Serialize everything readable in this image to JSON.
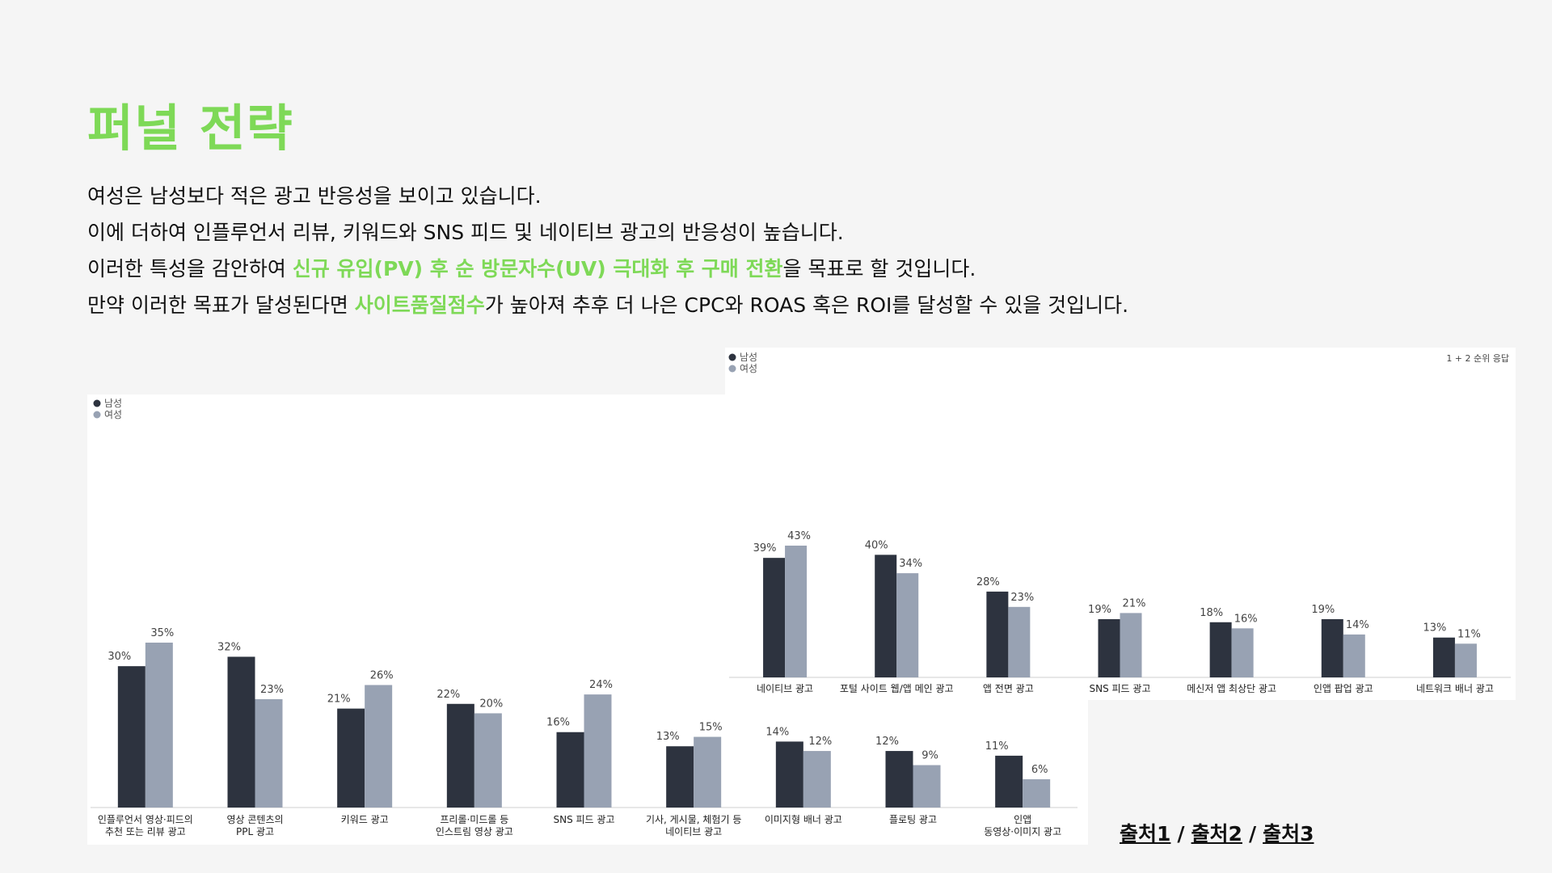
{
  "title": "퍼널 전략",
  "lines": {
    "l1": "여성은 남성보다 적은 광고 반응성을 보이고 있습니다.",
    "l2": "이에 더하여 인플루언서 리뷰, 키워드와 SNS 피드 및 네이티브 광고의 반응성이 높습니다.",
    "l3_a": "이러한 특성을 감안하여 ",
    "l3_hl": "신규 유입(PV) 후 순 방문자수(UV) 극대화 후 구매 전환",
    "l3_b": "을 목표로 할 것입니다.",
    "l4_a": "만약 이러한 목표가 달성된다면 ",
    "l4_hl": "사이트품질점수",
    "l4_b": "가 높아져 추후 더 나은 CPC와 ROAS 혹은 ROI를 달성할 수 있을 것입니다."
  },
  "colors": {
    "accent": "#7ed957",
    "male": "#2d333f",
    "female": "#98a2b3"
  },
  "sources": {
    "s1": "출처1",
    "s2": "출처2",
    "s3": "출처3",
    "sep": "/"
  },
  "chart_data": [
    {
      "type": "bar",
      "legend": [
        "남성",
        "여성"
      ],
      "legend_position": "top-left",
      "categories": [
        [
          "인플루언서 영상·피드의",
          "추천 또는 리뷰 광고"
        ],
        [
          "영상 콘텐츠의",
          "PPL 광고"
        ],
        [
          "키워드 광고"
        ],
        [
          "프리롤·미드롤 등",
          "인스트림 영상 광고"
        ],
        [
          "SNS 피드 광고"
        ],
        [
          "기사, 게시물, 체험기 등",
          "네이티브 광고"
        ],
        [
          "이미지형 배너 광고"
        ],
        [
          "플로팅 광고"
        ],
        [
          "인앱",
          "동영상·이미지 광고"
        ]
      ],
      "series": [
        {
          "name": "남성",
          "values": [
            30,
            32,
            21,
            22,
            16,
            13,
            14,
            12,
            11
          ]
        },
        {
          "name": "여성",
          "values": [
            35,
            23,
            26,
            20,
            24,
            15,
            12,
            9,
            6
          ]
        }
      ],
      "unit": "%",
      "ylim": [
        0,
        35
      ],
      "grid": false
    },
    {
      "type": "bar",
      "legend": [
        "남성",
        "여성"
      ],
      "legend_position": "top-left",
      "note": "1 + 2 순위 응답",
      "categories": [
        [
          "네이티브 광고"
        ],
        [
          "포털 사이트 웹/앱 메인 광고"
        ],
        [
          "앱 전면 광고"
        ],
        [
          "SNS 피드 광고"
        ],
        [
          "메신저 앱 최상단 광고"
        ],
        [
          "인앱 팝업 광고"
        ],
        [
          "네트워크 배너 광고"
        ]
      ],
      "series": [
        {
          "name": "남성",
          "values": [
            39,
            40,
            28,
            19,
            18,
            19,
            13
          ]
        },
        {
          "name": "여성",
          "values": [
            43,
            34,
            23,
            21,
            16,
            14,
            11
          ]
        }
      ],
      "unit": "%",
      "ylim": [
        0,
        43
      ],
      "grid": false
    }
  ]
}
